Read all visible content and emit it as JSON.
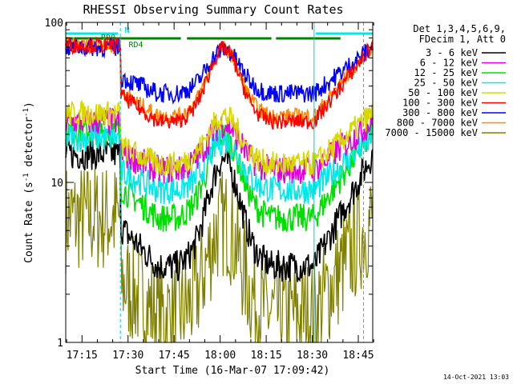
{
  "footer_date": "14-Oct-2021 13:03",
  "chart_data": {
    "type": "line",
    "title": "RHESSI Observing Summary Count Rates",
    "xlabel": "Start Time (16-Mar-07 17:09:42)",
    "ylabel_main": "Count Rate (s",
    "ylabel_sup": "-1",
    "ylabel_mid": " detector",
    "ylabel_sup2": "-1",
    "ylabel_end": ")",
    "y_scale": "log",
    "ylim": [
      1,
      100
    ],
    "xlim_minutes": [
      0,
      100
    ],
    "start_time": "17:09:42",
    "x_tick_labels": [
      "17:15",
      "17:30",
      "17:45",
      "18:00",
      "18:15",
      "18:30",
      "18:45"
    ],
    "x_tick_minutes": [
      5.3,
      20.3,
      35.3,
      50.3,
      65.3,
      80.3,
      95.3
    ],
    "y_tick_labels": [
      "1",
      "10",
      "100"
    ],
    "y_tick_values": [
      1,
      10,
      100
    ],
    "legend_header": [
      "Det 1,3,4,5,6,9,",
      "FDecim 1, Att 0"
    ],
    "legend_position": "right",
    "series": [
      {
        "name": "3 - 6 keV",
        "color": "#000000"
      },
      {
        "name": "6 - 12 keV",
        "color": "#e000e0"
      },
      {
        "name": "12 - 25 keV",
        "color": "#00e000"
      },
      {
        "name": "25 - 50 keV",
        "color": "#00e8e8"
      },
      {
        "name": "50 - 100 keV",
        "color": "#d8d800"
      },
      {
        "name": "100 - 300 keV",
        "color": "#ff0000"
      },
      {
        "name": "300 - 800 keV",
        "color": "#0000ff"
      },
      {
        "name": "800 - 7000 keV",
        "color": "#ff8c00"
      },
      {
        "name": "7000 - 15000 keV",
        "color": "#808000"
      }
    ],
    "series_profiles": [
      {
        "high": 15,
        "low": 3,
        "noise": 0.1
      },
      {
        "high": 24,
        "low": 12,
        "noise": 0.09
      },
      {
        "high": 21,
        "low": 6,
        "noise": 0.09
      },
      {
        "high": 19,
        "low": 9,
        "noise": 0.09
      },
      {
        "high": 27,
        "low": 13,
        "noise": 0.08
      },
      {
        "high": 72,
        "low": 24,
        "noise": 0.05
      },
      {
        "high": 70,
        "low": 36,
        "noise": 0.06
      },
      {
        "high": 72,
        "low": 26,
        "noise": 0.05
      },
      {
        "high": 6,
        "low": 1.5,
        "noise": 0.35
      }
    ],
    "annotations": [
      {
        "text": "RD0",
        "minute": 11.5,
        "color": "#008000"
      },
      {
        "text": "N",
        "minute": 19.2,
        "color": "#00c8c8"
      },
      {
        "text": "RD4",
        "minute": 20.5,
        "color": "#008000"
      }
    ],
    "flag_bars": [
      {
        "label": "SAA/night flag",
        "color": "#00e8e8",
        "segments": [
          [
            0,
            17
          ],
          [
            81.5,
            100
          ]
        ]
      },
      {
        "label": "decimation flag",
        "color": "#008000",
        "segments": [
          [
            0,
            37.5
          ],
          [
            39.5,
            67
          ],
          [
            68.5,
            89.5
          ]
        ]
      }
    ],
    "vertical_markers": [
      {
        "minute": 0,
        "style": "solid"
      },
      {
        "minute": 17.8,
        "style": "dashed"
      },
      {
        "minute": 80.9,
        "style": "solid"
      },
      {
        "minute": 97,
        "style": "dashed"
      }
    ]
  }
}
